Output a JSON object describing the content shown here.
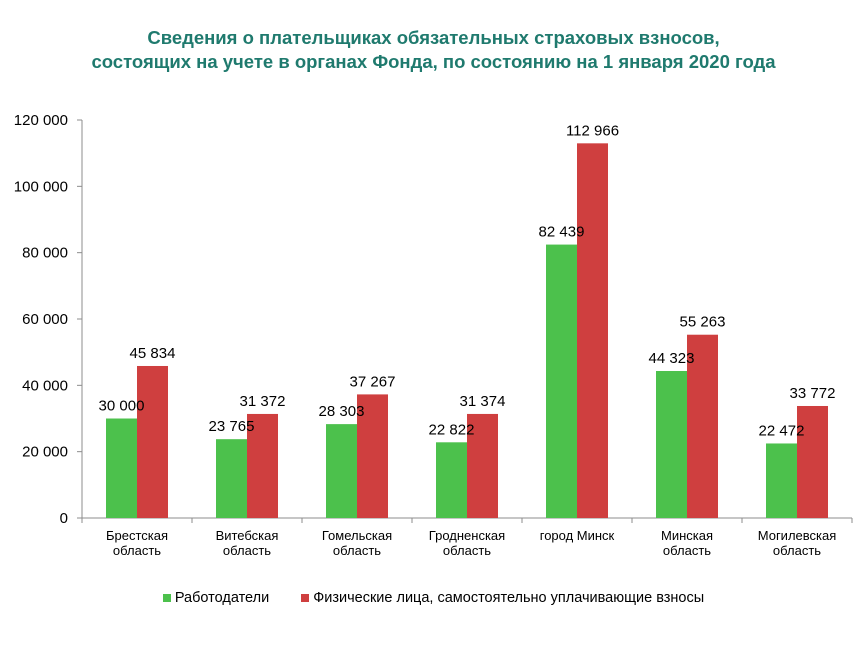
{
  "chart_data": {
    "type": "bar",
    "title_line1": "Сведения о плательщиках обязательных страховых взносов,",
    "title_line2": "состоящих на учете в органах Фонда, по состоянию на 1 января 2020 года",
    "categories": [
      [
        "Брестская",
        "область"
      ],
      [
        "Витебская",
        "область"
      ],
      [
        "Гомельская",
        "область"
      ],
      [
        "Гродненская",
        "область"
      ],
      [
        "город Минск"
      ],
      [
        "Минская",
        "область"
      ],
      [
        "Могилевская",
        "область"
      ]
    ],
    "series": [
      {
        "name": "Работодатели",
        "color": "#4cc14c",
        "values": [
          30000,
          23765,
          28303,
          22822,
          82439,
          44323,
          22472
        ],
        "labels": [
          "30 000",
          "23 765",
          "28 303",
          "22 822",
          "82 439",
          "44 323",
          "22 472"
        ]
      },
      {
        "name": "Физические лица, самостоятельно уплачивающие взносы",
        "color": "#cf3f3f",
        "values": [
          45834,
          31372,
          37267,
          31374,
          112966,
          55263,
          33772
        ],
        "labels": [
          "45 834",
          "31 372",
          "37 267",
          "31 374",
          "112 966",
          "55 263",
          "33 772"
        ]
      }
    ],
    "ylim": [
      0,
      120000
    ],
    "yticks": [
      0,
      20000,
      40000,
      60000,
      80000,
      100000,
      120000
    ],
    "ytick_labels": [
      "0",
      "20 000",
      "40 000",
      "60 000",
      "80 000",
      "100 000",
      "120 000"
    ],
    "grid": false,
    "legend_position": "bottom"
  }
}
